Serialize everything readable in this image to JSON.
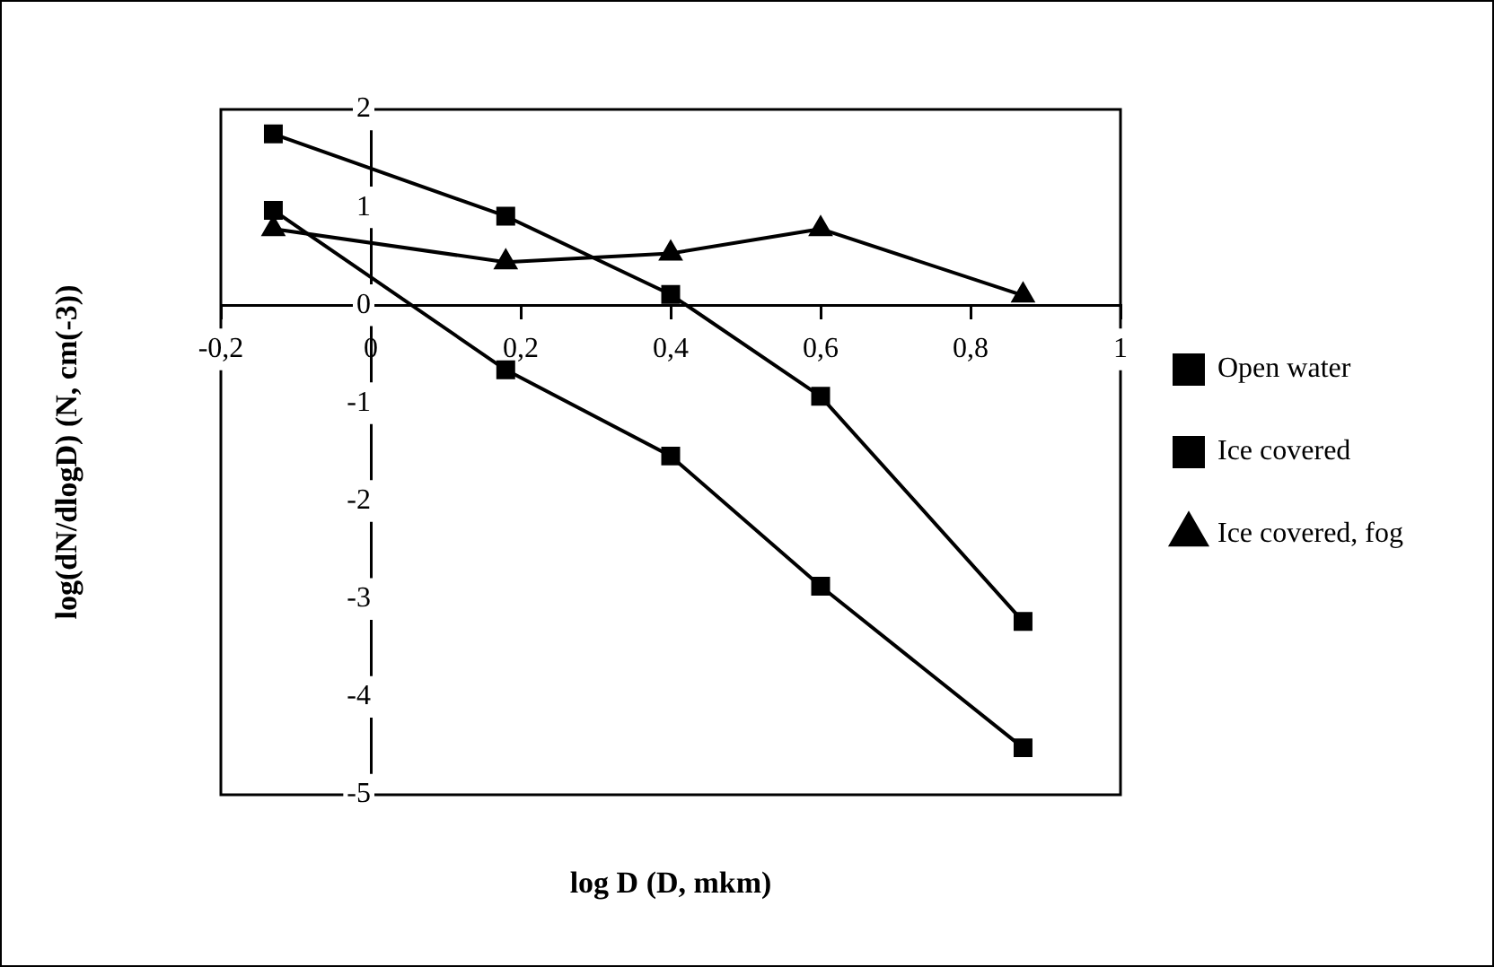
{
  "chart_data": {
    "type": "line",
    "xlabel": "log D (D, mkm)",
    "ylabel": "log(dN/dlogD) (N, cm(-3))",
    "x": [
      -0.13,
      0.18,
      0.4,
      0.6,
      0.87
    ],
    "series": [
      {
        "name": "Open water",
        "color": "#000000",
        "marker": "square",
        "values": [
          1.75,
          0.91,
          0.11,
          -0.93,
          -3.23
        ]
      },
      {
        "name": "Ice covered",
        "color": "#000000",
        "marker": "square",
        "values": [
          0.97,
          -0.66,
          -1.54,
          -2.87,
          -4.52
        ]
      },
      {
        "name": "Ice covered, fog",
        "color": "#000000",
        "marker": "triangle",
        "values": [
          0.78,
          0.44,
          0.53,
          0.78,
          0.1
        ]
      }
    ],
    "xlim": [
      -0.2,
      1
    ],
    "ylim": [
      -5,
      2
    ],
    "xticks": [
      {
        "value": -0.2,
        "label": "-0,2"
      },
      0,
      {
        "value": 0.2,
        "label": "0,2"
      },
      {
        "value": 0.4,
        "label": "0,4"
      },
      {
        "value": 0.6,
        "label": "0,6"
      },
      {
        "value": 0.8,
        "label": "0,8"
      },
      1
    ],
    "yticks": [
      -5,
      -4,
      -3,
      -2,
      -1,
      0,
      1,
      2
    ],
    "grid": false,
    "legend": "right",
    "line_style": "solid"
  }
}
